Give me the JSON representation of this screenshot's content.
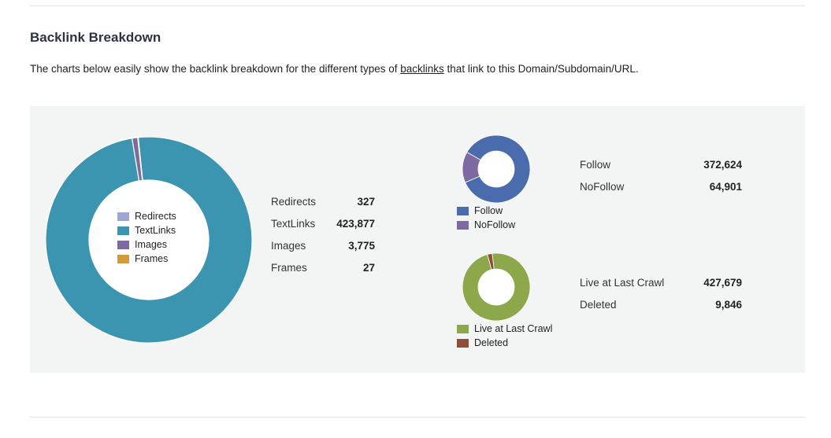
{
  "heading": "Backlink Breakdown",
  "intro": {
    "before": "The charts below easily show the backlink breakdown for the different types of ",
    "link": "backlinks",
    "after": " that link to this Domain/Subdomain/URL."
  },
  "colors": {
    "redirects": "#9ea6d4",
    "textlinks": "#3b95b0",
    "images": "#7d6aa0",
    "frames": "#d39a3a",
    "follow": "#4a6cac",
    "nofollow": "#7d6aa0",
    "live": "#8da84b",
    "deleted": "#8e4e38",
    "panel": "#f3f4f4"
  },
  "chart_data": [
    {
      "type": "pie",
      "variant": "donut",
      "categories": [
        "Redirects",
        "TextLinks",
        "Images",
        "Frames"
      ],
      "values": [
        327,
        423877,
        3775,
        27
      ],
      "display_values": [
        "327",
        "423,877",
        "3,775",
        "27"
      ],
      "legend_position": "center"
    },
    {
      "type": "pie",
      "variant": "donut",
      "categories": [
        "Follow",
        "NoFollow"
      ],
      "values": [
        372624,
        64901
      ],
      "display_values": [
        "372,624",
        "64,901"
      ],
      "legend_position": "bottom"
    },
    {
      "type": "pie",
      "variant": "donut",
      "categories": [
        "Live at Last Crawl",
        "Deleted"
      ],
      "values": [
        427679,
        9846
      ],
      "display_values": [
        "427,679",
        "9,846"
      ],
      "legend_position": "bottom"
    }
  ]
}
